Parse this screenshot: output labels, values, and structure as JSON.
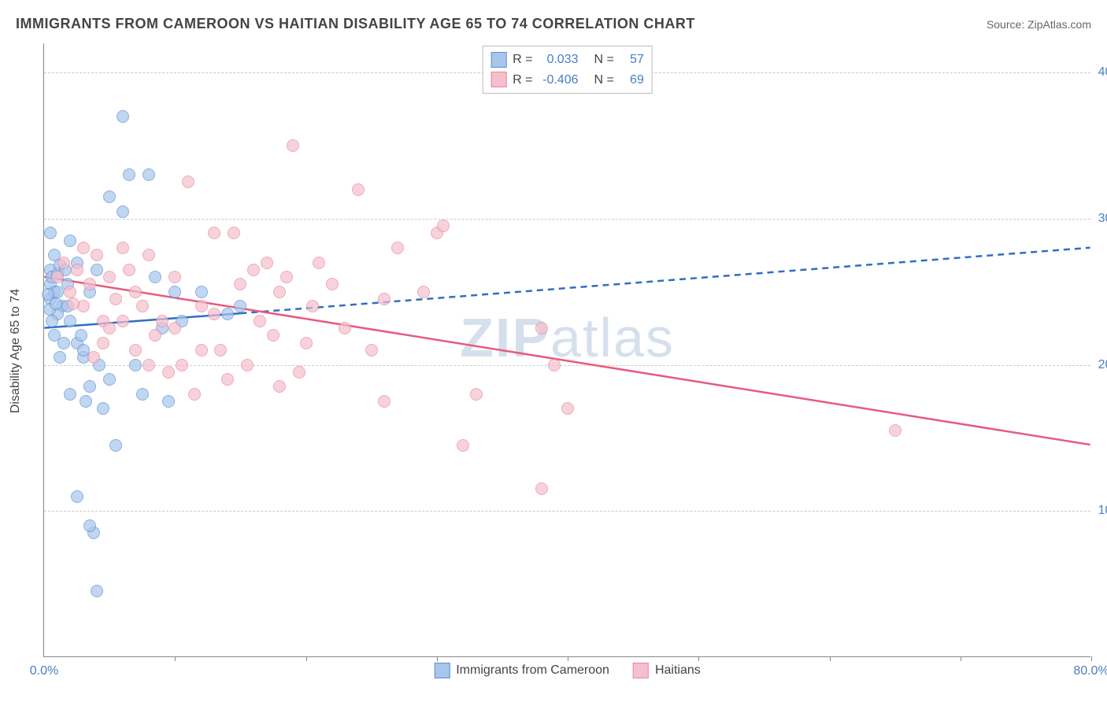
{
  "title": "IMMIGRANTS FROM CAMEROON VS HAITIAN DISABILITY AGE 65 TO 74 CORRELATION CHART",
  "source": "Source: ZipAtlas.com",
  "watermark": {
    "part1": "ZIP",
    "part2": "atlas"
  },
  "y_axis_label": "Disability Age 65 to 74",
  "chart": {
    "type": "scatter",
    "background_color": "#ffffff",
    "grid_color": "#cccccc",
    "axis_color": "#888888",
    "text_color": "#444444",
    "value_color": "#4a7ec4",
    "xlim": [
      0,
      80
    ],
    "ylim": [
      0,
      42
    ],
    "x_ticks": [
      0,
      10,
      20,
      30,
      40,
      50,
      60,
      70,
      80
    ],
    "x_tick_labels": {
      "0": "0.0%",
      "80": "80.0%"
    },
    "y_ticks": [
      10,
      20,
      30,
      40
    ],
    "y_tick_labels": {
      "10": "10.0%",
      "20": "20.0%",
      "30": "30.0%",
      "40": "40.0%"
    },
    "point_radius": 8,
    "point_opacity": 0.7
  },
  "series": [
    {
      "name": "Immigrants from Cameroon",
      "fill_color": "#a8c6eb",
      "stroke_color": "#5a8fd4",
      "line_color": "#2f6fc0",
      "R": "0.033",
      "N": "57",
      "trend": {
        "x1": 0,
        "y1": 22.5,
        "x2": 15,
        "y2": 23.5,
        "solid": true
      },
      "trend_ext": {
        "x1": 15,
        "y1": 23.5,
        "x2": 80,
        "y2": 28.0,
        "solid": false
      },
      "points": [
        [
          0.5,
          25.5
        ],
        [
          0.5,
          24.5
        ],
        [
          0.5,
          26.5
        ],
        [
          0.6,
          26.0
        ],
        [
          0.8,
          25.0
        ],
        [
          0.8,
          27.5
        ],
        [
          0.5,
          29.0
        ],
        [
          1.0,
          25.0
        ],
        [
          1.0,
          26.2
        ],
        [
          1.2,
          26.8
        ],
        [
          1.4,
          24.0
        ],
        [
          1.6,
          26.5
        ],
        [
          1.8,
          25.5
        ],
        [
          2.0,
          28.5
        ],
        [
          2.0,
          23.0
        ],
        [
          2.5,
          27.0
        ],
        [
          2.5,
          21.5
        ],
        [
          2.8,
          22.0
        ],
        [
          3.0,
          20.5
        ],
        [
          3.0,
          21.0
        ],
        [
          3.2,
          17.5
        ],
        [
          3.5,
          18.5
        ],
        [
          3.5,
          25.0
        ],
        [
          4.0,
          26.5
        ],
        [
          4.2,
          20.0
        ],
        [
          4.5,
          17.0
        ],
        [
          5.0,
          19.0
        ],
        [
          5.0,
          31.5
        ],
        [
          5.5,
          14.5
        ],
        [
          6.0,
          30.5
        ],
        [
          6.0,
          37.0
        ],
        [
          6.5,
          33.0
        ],
        [
          7.0,
          20.0
        ],
        [
          7.5,
          18.0
        ],
        [
          8.0,
          33.0
        ],
        [
          8.5,
          26.0
        ],
        [
          9.0,
          22.5
        ],
        [
          9.5,
          17.5
        ],
        [
          10.0,
          25.0
        ],
        [
          10.5,
          23.0
        ],
        [
          12.0,
          25.0
        ],
        [
          14.0,
          23.5
        ],
        [
          15.0,
          24.0
        ],
        [
          3.8,
          8.5
        ],
        [
          3.5,
          9.0
        ],
        [
          4.0,
          4.5
        ],
        [
          2.5,
          11.0
        ],
        [
          2.0,
          18.0
        ],
        [
          1.2,
          20.5
        ],
        [
          1.5,
          21.5
        ],
        [
          0.8,
          22.0
        ],
        [
          1.0,
          23.5
        ],
        [
          1.8,
          24.0
        ],
        [
          0.3,
          24.8
        ],
        [
          0.4,
          23.8
        ],
        [
          0.6,
          23.0
        ],
        [
          0.9,
          24.2
        ]
      ]
    },
    {
      "name": "Haitians",
      "fill_color": "#f5c0cd",
      "stroke_color": "#e8869f",
      "line_color": "#e85a7e",
      "R": "-0.406",
      "N": "69",
      "trend": {
        "x1": 0,
        "y1": 26.0,
        "x2": 80,
        "y2": 14.5,
        "solid": true
      },
      "trend_ext": null,
      "points": [
        [
          1.0,
          26.0
        ],
        [
          1.5,
          27.0
        ],
        [
          2.0,
          25.0
        ],
        [
          2.5,
          26.5
        ],
        [
          3.0,
          24.0
        ],
        [
          3.0,
          28.0
        ],
        [
          3.5,
          25.5
        ],
        [
          4.0,
          27.5
        ],
        [
          4.5,
          23.0
        ],
        [
          5.0,
          26.0
        ],
        [
          5.0,
          22.5
        ],
        [
          5.5,
          24.5
        ],
        [
          6.0,
          23.0
        ],
        [
          6.5,
          26.5
        ],
        [
          7.0,
          25.0
        ],
        [
          7.5,
          24.0
        ],
        [
          8.0,
          20.0
        ],
        [
          8.5,
          22.0
        ],
        [
          9.0,
          23.0
        ],
        [
          9.5,
          19.5
        ],
        [
          10.0,
          22.5
        ],
        [
          10.0,
          26.0
        ],
        [
          10.5,
          20.0
        ],
        [
          11.0,
          32.5
        ],
        [
          11.5,
          18.0
        ],
        [
          12.0,
          24.0
        ],
        [
          13.0,
          23.5
        ],
        [
          13.0,
          29.0
        ],
        [
          13.5,
          21.0
        ],
        [
          14.0,
          19.0
        ],
        [
          14.5,
          29.0
        ],
        [
          15.0,
          25.5
        ],
        [
          15.5,
          20.0
        ],
        [
          16.0,
          26.5
        ],
        [
          16.5,
          23.0
        ],
        [
          17.0,
          27.0
        ],
        [
          17.5,
          22.0
        ],
        [
          18.0,
          25.0
        ],
        [
          18.0,
          18.5
        ],
        [
          18.5,
          26.0
        ],
        [
          19.0,
          35.0
        ],
        [
          19.5,
          19.5
        ],
        [
          20.0,
          21.5
        ],
        [
          20.5,
          24.0
        ],
        [
          21.0,
          27.0
        ],
        [
          22.0,
          25.5
        ],
        [
          23.0,
          22.5
        ],
        [
          24.0,
          32.0
        ],
        [
          25.0,
          21.0
        ],
        [
          26.0,
          24.5
        ],
        [
          26.0,
          17.5
        ],
        [
          27.0,
          28.0
        ],
        [
          29.0,
          25.0
        ],
        [
          30.0,
          29.0
        ],
        [
          30.5,
          29.5
        ],
        [
          32.0,
          14.5
        ],
        [
          33.0,
          18.0
        ],
        [
          38.0,
          22.5
        ],
        [
          38.0,
          11.5
        ],
        [
          39.0,
          20.0
        ],
        [
          40.0,
          17.0
        ],
        [
          8.0,
          27.5
        ],
        [
          7.0,
          21.0
        ],
        [
          6.0,
          28.0
        ],
        [
          12.0,
          21.0
        ],
        [
          65.0,
          15.5
        ],
        [
          3.8,
          20.5
        ],
        [
          4.5,
          21.5
        ],
        [
          2.2,
          24.2
        ]
      ]
    }
  ],
  "stats_legend": {
    "r_label": "R =",
    "n_label": "N ="
  },
  "bottom_legend": {
    "items": [
      "Immigrants from Cameroon",
      "Haitians"
    ]
  }
}
